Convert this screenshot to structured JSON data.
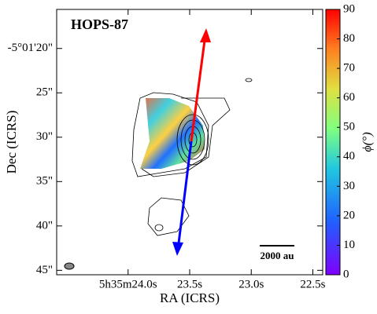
{
  "chart_data": {
    "type": "image",
    "title": "HOPS-87",
    "xlabel": "RA (ICRS)",
    "ylabel": "Dec (ICRS)",
    "xlim": [
      24.58,
      22.42
    ],
    "ylim": [
      45.5,
      15.6
    ],
    "xticks": [
      {
        "value": 24.0,
        "label": "5h35m24.0s"
      },
      {
        "value": 23.5,
        "label": "23.5s"
      },
      {
        "value": 23.0,
        "label": "23.0s"
      },
      {
        "value": 22.5,
        "label": "22.5s"
      }
    ],
    "yticks": [
      {
        "value": 20,
        "label": "-5°01'20\""
      },
      {
        "value": 25,
        "label": "25\""
      },
      {
        "value": 30,
        "label": "30\""
      },
      {
        "value": 35,
        "label": "35\""
      },
      {
        "value": 40,
        "label": "40\""
      },
      {
        "value": 45,
        "label": "45\""
      }
    ],
    "colorbar": {
      "label": "ϕ(°)",
      "lim": [
        0,
        90
      ],
      "ticks": [
        0,
        10,
        20,
        30,
        40,
        50,
        60,
        70,
        80,
        90
      ]
    },
    "scale_bar": "2000 au"
  }
}
